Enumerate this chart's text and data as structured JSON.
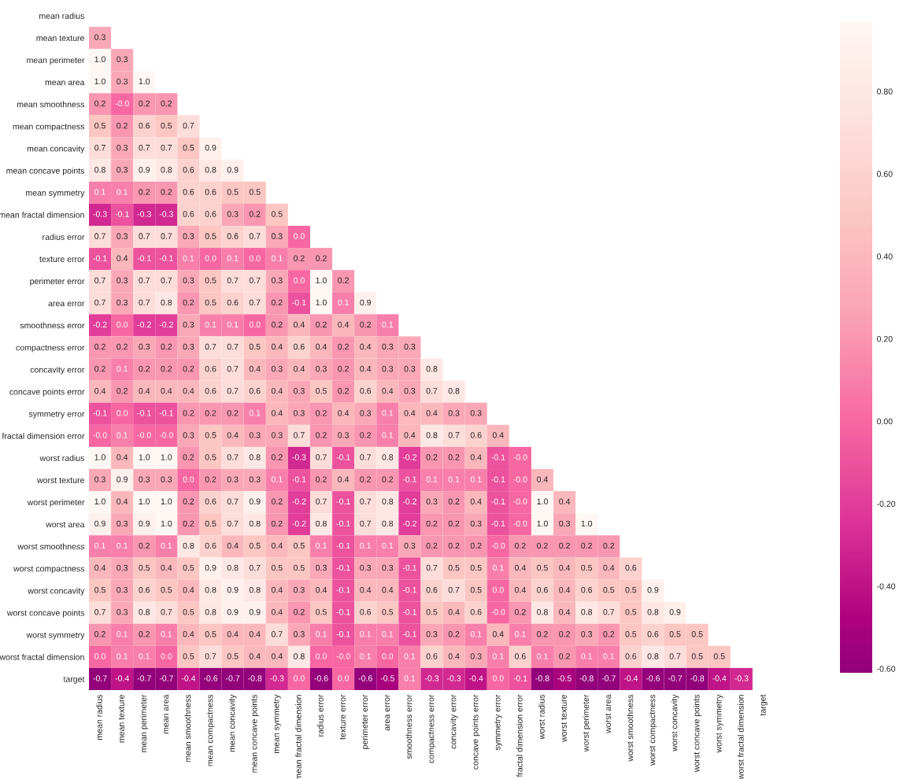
{
  "chart_data": {
    "type": "heatmap",
    "categories": [
      "mean radius",
      "mean texture",
      "mean perimeter",
      "mean area",
      "mean smoothness",
      "mean compactness",
      "mean concavity",
      "mean concave points",
      "mean symmetry",
      "mean fractal dimension",
      "radius error",
      "texture error",
      "perimeter error",
      "area error",
      "smoothness error",
      "compactness error",
      "concavity error",
      "concave points error",
      "symmetry error",
      "fractal dimension error",
      "worst radius",
      "worst texture",
      "worst perimeter",
      "worst area",
      "worst smoothness",
      "worst compactness",
      "worst concavity",
      "worst concave points",
      "worst symmetry",
      "worst fractal dimension",
      "target"
    ],
    "y_categories": [
      "mean radius",
      "mean texture",
      "mean perimeter",
      "mean area",
      "mean smoothness",
      "mean compactness",
      "mean concavity",
      "mean concave points",
      "mean symmetry",
      "mean fractal dimension",
      "radius error",
      "texture error",
      "perimeter error",
      "area error",
      "smoothness error",
      "compactness error",
      "concavity error",
      "concave points error",
      "symmetry error",
      "fractal dimension error",
      "worst radius",
      "worst texture",
      "worst perimeter",
      "worst area",
      "worst smoothness",
      "worst compactness",
      "worst concavity",
      "worst concave points",
      "worst symmetry",
      "worst fractal dimension",
      "target"
    ],
    "cells": [
      [
        null,
        null,
        null,
        null,
        null,
        null,
        null,
        null,
        null,
        null,
        null,
        null,
        null,
        null,
        null,
        null,
        null,
        null,
        null,
        null,
        null,
        null,
        null,
        null,
        null,
        null,
        null,
        null,
        null,
        null,
        null
      ],
      [
        0.3,
        null,
        null,
        null,
        null,
        null,
        null,
        null,
        null,
        null,
        null,
        null,
        null,
        null,
        null,
        null,
        null,
        null,
        null,
        null,
        null,
        null,
        null,
        null,
        null,
        null,
        null,
        null,
        null,
        null,
        null
      ],
      [
        1.0,
        0.3,
        null,
        null,
        null,
        null,
        null,
        null,
        null,
        null,
        null,
        null,
        null,
        null,
        null,
        null,
        null,
        null,
        null,
        null,
        null,
        null,
        null,
        null,
        null,
        null,
        null,
        null,
        null,
        null,
        null
      ],
      [
        1.0,
        0.3,
        1.0,
        null,
        null,
        null,
        null,
        null,
        null,
        null,
        null,
        null,
        null,
        null,
        null,
        null,
        null,
        null,
        null,
        null,
        null,
        null,
        null,
        null,
        null,
        null,
        null,
        null,
        null,
        null,
        null
      ],
      [
        0.2,
        0.0,
        0.2,
        0.2,
        null,
        null,
        null,
        null,
        null,
        null,
        null,
        null,
        null,
        null,
        null,
        null,
        null,
        null,
        null,
        null,
        null,
        null,
        null,
        null,
        null,
        null,
        null,
        null,
        null,
        null,
        null
      ],
      [
        0.5,
        0.2,
        0.6,
        0.5,
        0.7,
        null,
        null,
        null,
        null,
        null,
        null,
        null,
        null,
        null,
        null,
        null,
        null,
        null,
        null,
        null,
        null,
        null,
        null,
        null,
        null,
        null,
        null,
        null,
        null,
        null,
        null
      ],
      [
        0.7,
        0.3,
        0.7,
        0.7,
        0.5,
        0.9,
        null,
        null,
        null,
        null,
        null,
        null,
        null,
        null,
        null,
        null,
        null,
        null,
        null,
        null,
        null,
        null,
        null,
        null,
        null,
        null,
        null,
        null,
        null,
        null,
        null
      ],
      [
        0.8,
        0.3,
        0.9,
        0.8,
        0.6,
        0.8,
        0.9,
        null,
        null,
        null,
        null,
        null,
        null,
        null,
        null,
        null,
        null,
        null,
        null,
        null,
        null,
        null,
        null,
        null,
        null,
        null,
        null,
        null,
        null,
        null,
        null
      ],
      [
        0.1,
        0.1,
        0.2,
        0.2,
        0.6,
        0.6,
        0.5,
        0.5,
        null,
        null,
        null,
        null,
        null,
        null,
        null,
        null,
        null,
        null,
        null,
        null,
        null,
        null,
        null,
        null,
        null,
        null,
        null,
        null,
        null,
        null,
        null
      ],
      [
        -0.3,
        -0.1,
        -0.3,
        -0.3,
        0.6,
        0.6,
        0.3,
        0.2,
        0.5,
        null,
        null,
        null,
        null,
        null,
        null,
        null,
        null,
        null,
        null,
        null,
        null,
        null,
        null,
        null,
        null,
        null,
        null,
        null,
        null,
        null,
        null
      ],
      [
        0.7,
        0.3,
        0.7,
        0.7,
        0.3,
        0.5,
        0.6,
        0.7,
        0.3,
        0.0,
        null,
        null,
        null,
        null,
        null,
        null,
        null,
        null,
        null,
        null,
        null,
        null,
        null,
        null,
        null,
        null,
        null,
        null,
        null,
        null,
        null
      ],
      [
        -0.1,
        0.4,
        -0.1,
        -0.1,
        0.1,
        0.0,
        0.1,
        0.0,
        0.1,
        0.2,
        0.2,
        null,
        null,
        null,
        null,
        null,
        null,
        null,
        null,
        null,
        null,
        null,
        null,
        null,
        null,
        null,
        null,
        null,
        null,
        null,
        null
      ],
      [
        0.7,
        0.3,
        0.7,
        0.7,
        0.3,
        0.5,
        0.7,
        0.7,
        0.3,
        0.0,
        1.0,
        0.2,
        null,
        null,
        null,
        null,
        null,
        null,
        null,
        null,
        null,
        null,
        null,
        null,
        null,
        null,
        null,
        null,
        null,
        null,
        null
      ],
      [
        0.7,
        0.3,
        0.7,
        0.8,
        0.2,
        0.5,
        0.6,
        0.7,
        0.2,
        -0.1,
        1.0,
        0.1,
        0.9,
        null,
        null,
        null,
        null,
        null,
        null,
        null,
        null,
        null,
        null,
        null,
        null,
        null,
        null,
        null,
        null,
        null,
        null
      ],
      [
        -0.2,
        0.0,
        -0.2,
        -0.2,
        0.3,
        0.1,
        0.1,
        0.0,
        0.2,
        0.4,
        0.2,
        0.4,
        0.2,
        0.1,
        null,
        null,
        null,
        null,
        null,
        null,
        null,
        null,
        null,
        null,
        null,
        null,
        null,
        null,
        null,
        null,
        null
      ],
      [
        0.2,
        0.2,
        0.3,
        0.2,
        0.3,
        0.7,
        0.7,
        0.5,
        0.4,
        0.6,
        0.4,
        0.2,
        0.4,
        0.3,
        0.3,
        null,
        null,
        null,
        null,
        null,
        null,
        null,
        null,
        null,
        null,
        null,
        null,
        null,
        null,
        null,
        null
      ],
      [
        0.2,
        0.1,
        0.2,
        0.2,
        0.2,
        0.6,
        0.7,
        0.4,
        0.3,
        0.4,
        0.3,
        0.2,
        0.4,
        0.3,
        0.3,
        0.8,
        null,
        null,
        null,
        null,
        null,
        null,
        null,
        null,
        null,
        null,
        null,
        null,
        null,
        null,
        null
      ],
      [
        0.4,
        0.2,
        0.4,
        0.4,
        0.4,
        0.6,
        0.7,
        0.6,
        0.4,
        0.3,
        0.5,
        0.2,
        0.6,
        0.4,
        0.3,
        0.7,
        0.8,
        null,
        null,
        null,
        null,
        null,
        null,
        null,
        null,
        null,
        null,
        null,
        null,
        null,
        null
      ],
      [
        -0.1,
        0.0,
        -0.1,
        -0.1,
        0.2,
        0.2,
        0.2,
        0.1,
        0.4,
        0.3,
        0.2,
        0.4,
        0.3,
        0.1,
        0.4,
        0.4,
        0.3,
        0.3,
        null,
        null,
        null,
        null,
        null,
        null,
        null,
        null,
        null,
        null,
        null,
        null,
        null
      ],
      [
        0.0,
        0.1,
        0.0,
        0.0,
        0.3,
        0.5,
        0.4,
        0.3,
        0.3,
        0.7,
        0.2,
        0.3,
        0.2,
        0.1,
        0.4,
        0.8,
        0.7,
        0.6,
        0.4,
        null,
        null,
        null,
        null,
        null,
        null,
        null,
        null,
        null,
        null,
        null,
        null
      ],
      [
        1.0,
        0.4,
        1.0,
        1.0,
        0.2,
        0.5,
        0.7,
        0.8,
        0.2,
        -0.3,
        0.7,
        -0.1,
        0.7,
        0.8,
        -0.2,
        0.2,
        0.2,
        0.4,
        -0.1,
        0.0,
        null,
        null,
        null,
        null,
        null,
        null,
        null,
        null,
        null,
        null,
        null
      ],
      [
        0.3,
        0.9,
        0.3,
        0.3,
        0.0,
        0.2,
        0.3,
        0.3,
        0.1,
        -0.1,
        0.2,
        0.4,
        0.2,
        0.2,
        -0.1,
        0.1,
        0.1,
        0.1,
        -0.1,
        0.0,
        0.4,
        null,
        null,
        null,
        null,
        null,
        null,
        null,
        null,
        null,
        null
      ],
      [
        1.0,
        0.4,
        1.0,
        1.0,
        0.2,
        0.6,
        0.7,
        0.9,
        0.2,
        -0.2,
        0.7,
        -0.1,
        0.7,
        0.8,
        -0.2,
        0.3,
        0.2,
        0.4,
        -0.1,
        0.0,
        1.0,
        0.4,
        null,
        null,
        null,
        null,
        null,
        null,
        null,
        null,
        null
      ],
      [
        0.9,
        0.3,
        0.9,
        1.0,
        0.2,
        0.5,
        0.7,
        0.8,
        0.2,
        -0.2,
        0.8,
        -0.1,
        0.7,
        0.8,
        -0.2,
        0.2,
        0.2,
        0.3,
        -0.1,
        0.0,
        1.0,
        0.3,
        1.0,
        null,
        null,
        null,
        null,
        null,
        null,
        null,
        null
      ],
      [
        0.1,
        0.1,
        0.2,
        0.1,
        0.8,
        0.6,
        0.4,
        0.5,
        0.4,
        0.5,
        0.1,
        -0.1,
        0.1,
        0.1,
        0.3,
        0.2,
        0.2,
        0.2,
        0.0,
        0.2,
        0.2,
        0.2,
        0.2,
        0.2,
        null,
        null,
        null,
        null,
        null,
        null,
        null
      ],
      [
        0.4,
        0.3,
        0.5,
        0.4,
        0.5,
        0.9,
        0.8,
        0.7,
        0.5,
        0.5,
        0.3,
        -0.1,
        0.3,
        0.3,
        -0.1,
        0.7,
        0.5,
        0.5,
        0.1,
        0.4,
        0.5,
        0.4,
        0.5,
        0.4,
        0.6,
        null,
        null,
        null,
        null,
        null,
        null
      ],
      [
        0.5,
        0.3,
        0.6,
        0.5,
        0.4,
        0.8,
        0.9,
        0.8,
        0.4,
        0.3,
        0.4,
        -0.1,
        0.4,
        0.4,
        -0.1,
        0.6,
        0.7,
        0.5,
        0.0,
        0.4,
        0.6,
        0.4,
        0.6,
        0.5,
        0.5,
        0.9,
        null,
        null,
        null,
        null,
        null
      ],
      [
        0.7,
        0.3,
        0.8,
        0.7,
        0.5,
        0.8,
        0.9,
        0.9,
        0.4,
        0.2,
        0.5,
        -0.1,
        0.6,
        0.5,
        -0.1,
        0.5,
        0.4,
        0.6,
        0.0,
        0.2,
        0.8,
        0.4,
        0.8,
        0.7,
        0.5,
        0.8,
        0.9,
        null,
        null,
        null,
        null
      ],
      [
        0.2,
        0.1,
        0.2,
        0.1,
        0.4,
        0.5,
        0.4,
        0.4,
        0.7,
        0.3,
        0.1,
        -0.1,
        0.1,
        0.1,
        -0.1,
        0.3,
        0.2,
        0.1,
        0.4,
        0.1,
        0.2,
        0.2,
        0.3,
        0.2,
        0.5,
        0.6,
        0.5,
        0.5,
        null,
        null,
        null
      ],
      [
        0.0,
        0.1,
        0.1,
        0.0,
        0.5,
        0.7,
        0.5,
        0.4,
        0.4,
        0.8,
        0.0,
        0.0,
        0.1,
        0.0,
        0.1,
        0.6,
        0.4,
        0.3,
        0.1,
        0.6,
        0.1,
        0.2,
        0.1,
        0.1,
        0.6,
        0.8,
        0.7,
        0.5,
        0.5,
        null,
        null
      ],
      [
        -0.7,
        -0.4,
        -0.7,
        -0.7,
        -0.4,
        -0.6,
        -0.7,
        -0.8,
        -0.3,
        0.0,
        -0.6,
        0.0,
        -0.6,
        -0.5,
        0.1,
        -0.3,
        -0.3,
        -0.4,
        0.0,
        -0.1,
        -0.8,
        -0.5,
        -0.8,
        -0.7,
        -0.4,
        -0.6,
        -0.7,
        -0.8,
        -0.4,
        -0.3,
        null
      ]
    ],
    "cell_labels": [
      [
        null,
        null,
        null,
        null,
        null,
        null,
        null,
        null,
        null,
        null,
        null,
        null,
        null,
        null,
        null,
        null,
        null,
        null,
        null,
        null,
        null,
        null,
        null,
        null,
        null,
        null,
        null,
        null,
        null,
        null,
        null
      ],
      [
        "0.3",
        null,
        null,
        null,
        null,
        null,
        null,
        null,
        null,
        null,
        null,
        null,
        null,
        null,
        null,
        null,
        null,
        null,
        null,
        null,
        null,
        null,
        null,
        null,
        null,
        null,
        null,
        null,
        null,
        null,
        null
      ],
      [
        "1.0",
        "0.3",
        null,
        null,
        null,
        null,
        null,
        null,
        null,
        null,
        null,
        null,
        null,
        null,
        null,
        null,
        null,
        null,
        null,
        null,
        null,
        null,
        null,
        null,
        null,
        null,
        null,
        null,
        null,
        null,
        null
      ],
      [
        "1.0",
        "0.3",
        "1.0",
        null,
        null,
        null,
        null,
        null,
        null,
        null,
        null,
        null,
        null,
        null,
        null,
        null,
        null,
        null,
        null,
        null,
        null,
        null,
        null,
        null,
        null,
        null,
        null,
        null,
        null,
        null,
        null
      ],
      [
        "0.2",
        "-0.0",
        "0.2",
        "0.2",
        null,
        null,
        null,
        null,
        null,
        null,
        null,
        null,
        null,
        null,
        null,
        null,
        null,
        null,
        null,
        null,
        null,
        null,
        null,
        null,
        null,
        null,
        null,
        null,
        null,
        null,
        null
      ],
      [
        "0.5",
        "0.2",
        "0.6",
        "0.5",
        "0.7",
        null,
        null,
        null,
        null,
        null,
        null,
        null,
        null,
        null,
        null,
        null,
        null,
        null,
        null,
        null,
        null,
        null,
        null,
        null,
        null,
        null,
        null,
        null,
        null,
        null,
        null
      ],
      [
        "0.7",
        "0.3",
        "0.7",
        "0.7",
        "0.5",
        "0.9",
        null,
        null,
        null,
        null,
        null,
        null,
        null,
        null,
        null,
        null,
        null,
        null,
        null,
        null,
        null,
        null,
        null,
        null,
        null,
        null,
        null,
        null,
        null,
        null,
        null
      ],
      [
        "0.8",
        "0.3",
        "0.9",
        "0.8",
        "0.6",
        "0.8",
        "0.9",
        null,
        null,
        null,
        null,
        null,
        null,
        null,
        null,
        null,
        null,
        null,
        null,
        null,
        null,
        null,
        null,
        null,
        null,
        null,
        null,
        null,
        null,
        null,
        null
      ],
      [
        "0.1",
        "0.1",
        "0.2",
        "0.2",
        "0.6",
        "0.6",
        "0.5",
        "0.5",
        null,
        null,
        null,
        null,
        null,
        null,
        null,
        null,
        null,
        null,
        null,
        null,
        null,
        null,
        null,
        null,
        null,
        null,
        null,
        null,
        null,
        null,
        null
      ],
      [
        "-0.3",
        "-0.1",
        "-0.3",
        "-0.3",
        "0.6",
        "0.6",
        "0.3",
        "0.2",
        "0.5",
        null,
        null,
        null,
        null,
        null,
        null,
        null,
        null,
        null,
        null,
        null,
        null,
        null,
        null,
        null,
        null,
        null,
        null,
        null,
        null,
        null,
        null
      ],
      [
        "0.7",
        "0.3",
        "0.7",
        "0.7",
        "0.3",
        "0.5",
        "0.6",
        "0.7",
        "0.3",
        "0.0",
        null,
        null,
        null,
        null,
        null,
        null,
        null,
        null,
        null,
        null,
        null,
        null,
        null,
        null,
        null,
        null,
        null,
        null,
        null,
        null,
        null
      ],
      [
        "-0.1",
        "0.4",
        "-0.1",
        "-0.1",
        "0.1",
        "0.0",
        "0.1",
        "0.0",
        "0.1",
        "0.2",
        "0.2",
        null,
        null,
        null,
        null,
        null,
        null,
        null,
        null,
        null,
        null,
        null,
        null,
        null,
        null,
        null,
        null,
        null,
        null,
        null,
        null
      ],
      [
        "0.7",
        "0.3",
        "0.7",
        "0.7",
        "0.3",
        "0.5",
        "0.7",
        "0.7",
        "0.3",
        "0.0",
        "1.0",
        "0.2",
        null,
        null,
        null,
        null,
        null,
        null,
        null,
        null,
        null,
        null,
        null,
        null,
        null,
        null,
        null,
        null,
        null,
        null,
        null
      ],
      [
        "0.7",
        "0.3",
        "0.7",
        "0.8",
        "0.2",
        "0.5",
        "0.6",
        "0.7",
        "0.2",
        "-0.1",
        "1.0",
        "0.1",
        "0.9",
        null,
        null,
        null,
        null,
        null,
        null,
        null,
        null,
        null,
        null,
        null,
        null,
        null,
        null,
        null,
        null,
        null,
        null
      ],
      [
        "-0.2",
        "0.0",
        "-0.2",
        "-0.2",
        "0.3",
        "0.1",
        "0.1",
        "0.0",
        "0.2",
        "0.4",
        "0.2",
        "0.4",
        "0.2",
        "0.1",
        null,
        null,
        null,
        null,
        null,
        null,
        null,
        null,
        null,
        null,
        null,
        null,
        null,
        null,
        null,
        null,
        null
      ],
      [
        "0.2",
        "0.2",
        "0.3",
        "0.2",
        "0.3",
        "0.7",
        "0.7",
        "0.5",
        "0.4",
        "0.6",
        "0.4",
        "0.2",
        "0.4",
        "0.3",
        "0.3",
        null,
        null,
        null,
        null,
        null,
        null,
        null,
        null,
        null,
        null,
        null,
        null,
        null,
        null,
        null,
        null
      ],
      [
        "0.2",
        "0.1",
        "0.2",
        "0.2",
        "0.2",
        "0.6",
        "0.7",
        "0.4",
        "0.3",
        "0.4",
        "0.3",
        "0.2",
        "0.4",
        "0.3",
        "0.3",
        "0.8",
        null,
        null,
        null,
        null,
        null,
        null,
        null,
        null,
        null,
        null,
        null,
        null,
        null,
        null,
        null
      ],
      [
        "0.4",
        "0.2",
        "0.4",
        "0.4",
        "0.4",
        "0.6",
        "0.7",
        "0.6",
        "0.4",
        "0.3",
        "0.5",
        "0.2",
        "0.6",
        "0.4",
        "0.3",
        "0.7",
        "0.8",
        null,
        null,
        null,
        null,
        null,
        null,
        null,
        null,
        null,
        null,
        null,
        null,
        null,
        null
      ],
      [
        "-0.1",
        "0.0",
        "-0.1",
        "-0.1",
        "0.2",
        "0.2",
        "0.2",
        "0.1",
        "0.4",
        "0.3",
        "0.2",
        "0.4",
        "0.3",
        "0.1",
        "0.4",
        "0.4",
        "0.3",
        "0.3",
        null,
        null,
        null,
        null,
        null,
        null,
        null,
        null,
        null,
        null,
        null,
        null,
        null
      ],
      [
        "-0.0",
        "0.1",
        "-0.0",
        "-0.0",
        "0.3",
        "0.5",
        "0.4",
        "0.3",
        "0.3",
        "0.7",
        "0.2",
        "0.3",
        "0.2",
        "0.1",
        "0.4",
        "0.8",
        "0.7",
        "0.6",
        "0.4",
        null,
        null,
        null,
        null,
        null,
        null,
        null,
        null,
        null,
        null,
        null,
        null
      ],
      [
        "1.0",
        "0.4",
        "1.0",
        "1.0",
        "0.2",
        "0.5",
        "0.7",
        "0.8",
        "0.2",
        "-0.3",
        "0.7",
        "-0.1",
        "0.7",
        "0.8",
        "-0.2",
        "0.2",
        "0.2",
        "0.4",
        "-0.1",
        "-0.0",
        null,
        null,
        null,
        null,
        null,
        null,
        null,
        null,
        null,
        null,
        null
      ],
      [
        "0.3",
        "0.9",
        "0.3",
        "0.3",
        "0.0",
        "0.2",
        "0.3",
        "0.3",
        "0.1",
        "-0.1",
        "0.2",
        "0.4",
        "0.2",
        "0.2",
        "-0.1",
        "0.1",
        "0.1",
        "0.1",
        "-0.1",
        "-0.0",
        "0.4",
        null,
        null,
        null,
        null,
        null,
        null,
        null,
        null,
        null,
        null
      ],
      [
        "1.0",
        "0.4",
        "1.0",
        "1.0",
        "0.2",
        "0.6",
        "0.7",
        "0.9",
        "0.2",
        "-0.2",
        "0.7",
        "-0.1",
        "0.7",
        "0.8",
        "-0.2",
        "0.3",
        "0.2",
        "0.4",
        "-0.1",
        "-0.0",
        "1.0",
        "0.4",
        null,
        null,
        null,
        null,
        null,
        null,
        null,
        null,
        null
      ],
      [
        "0.9",
        "0.3",
        "0.9",
        "1.0",
        "0.2",
        "0.5",
        "0.7",
        "0.8",
        "0.2",
        "-0.2",
        "0.8",
        "-0.1",
        "0.7",
        "0.8",
        "-0.2",
        "0.2",
        "0.2",
        "0.3",
        "-0.1",
        "-0.0",
        "1.0",
        "0.3",
        "1.0",
        null,
        null,
        null,
        null,
        null,
        null,
        null,
        null
      ],
      [
        "0.1",
        "0.1",
        "0.2",
        "0.1",
        "0.8",
        "0.6",
        "0.4",
        "0.5",
        "0.4",
        "0.5",
        "0.1",
        "-0.1",
        "0.1",
        "0.1",
        "0.3",
        "0.2",
        "0.2",
        "0.2",
        "-0.0",
        "0.2",
        "0.2",
        "0.2",
        "0.2",
        "0.2",
        null,
        null,
        null,
        null,
        null,
        null,
        null
      ],
      [
        "0.4",
        "0.3",
        "0.5",
        "0.4",
        "0.5",
        "0.9",
        "0.8",
        "0.7",
        "0.5",
        "0.5",
        "0.3",
        "-0.1",
        "0.3",
        "0.3",
        "-0.1",
        "0.7",
        "0.5",
        "0.5",
        "0.1",
        "0.4",
        "0.5",
        "0.4",
        "0.5",
        "0.4",
        "0.6",
        null,
        null,
        null,
        null,
        null,
        null
      ],
      [
        "0.5",
        "0.3",
        "0.6",
        "0.5",
        "0.4",
        "0.8",
        "0.9",
        "0.8",
        "0.4",
        "0.3",
        "0.4",
        "-0.1",
        "0.4",
        "0.4",
        "-0.1",
        "0.6",
        "0.7",
        "0.5",
        "0.0",
        "0.4",
        "0.6",
        "0.4",
        "0.6",
        "0.5",
        "0.5",
        "0.9",
        null,
        null,
        null,
        null,
        null
      ],
      [
        "0.7",
        "0.3",
        "0.8",
        "0.7",
        "0.5",
        "0.8",
        "0.9",
        "0.9",
        "0.4",
        "0.2",
        "0.5",
        "-0.1",
        "0.6",
        "0.5",
        "-0.1",
        "0.5",
        "0.4",
        "0.6",
        "-0.0",
        "0.2",
        "0.8",
        "0.4",
        "0.8",
        "0.7",
        "0.5",
        "0.8",
        "0.9",
        null,
        null,
        null,
        null
      ],
      [
        "0.2",
        "0.1",
        "0.2",
        "0.1",
        "0.4",
        "0.5",
        "0.4",
        "0.4",
        "0.7",
        "0.3",
        "0.1",
        "-0.1",
        "0.1",
        "0.1",
        "-0.1",
        "0.3",
        "0.2",
        "0.1",
        "0.4",
        "0.1",
        "0.2",
        "0.2",
        "0.3",
        "0.2",
        "0.5",
        "0.6",
        "0.5",
        "0.5",
        null,
        null,
        null
      ],
      [
        "0.0",
        "0.1",
        "0.1",
        "0.0",
        "0.5",
        "0.7",
        "0.5",
        "0.4",
        "0.4",
        "0.8",
        "0.0",
        "-0.0",
        "0.1",
        "0.0",
        "0.1",
        "0.6",
        "0.4",
        "0.3",
        "0.1",
        "0.6",
        "0.1",
        "0.2",
        "0.1",
        "0.1",
        "0.6",
        "0.8",
        "0.7",
        "0.5",
        "0.5",
        null,
        null
      ],
      [
        "-0.7",
        "-0.4",
        "-0.7",
        "-0.7",
        "-0.4",
        "-0.6",
        "-0.7",
        "-0.8",
        "-0.3",
        "0.0",
        "-0.6",
        "0.0",
        "-0.6",
        "-0.5",
        "0.1",
        "-0.3",
        "-0.3",
        "-0.4",
        "0.0",
        "-0.1",
        "-0.8",
        "-0.5",
        "-0.8",
        "-0.7",
        "-0.4",
        "-0.6",
        "-0.7",
        "-0.8",
        "-0.4",
        "-0.3",
        null
      ]
    ],
    "clim": [
      -0.61,
      0.97
    ],
    "cticks": [
      {
        "value": -0.6,
        "label": "-0.60"
      },
      {
        "value": -0.4,
        "label": "-0.40"
      },
      {
        "value": -0.2,
        "label": "-0.20"
      },
      {
        "value": 0.0,
        "label": "0.00"
      },
      {
        "value": 0.2,
        "label": "0.20"
      },
      {
        "value": 0.4,
        "label": "0.40"
      },
      {
        "value": 0.6,
        "label": "0.60"
      },
      {
        "value": 0.8,
        "label": "0.80"
      }
    ]
  }
}
